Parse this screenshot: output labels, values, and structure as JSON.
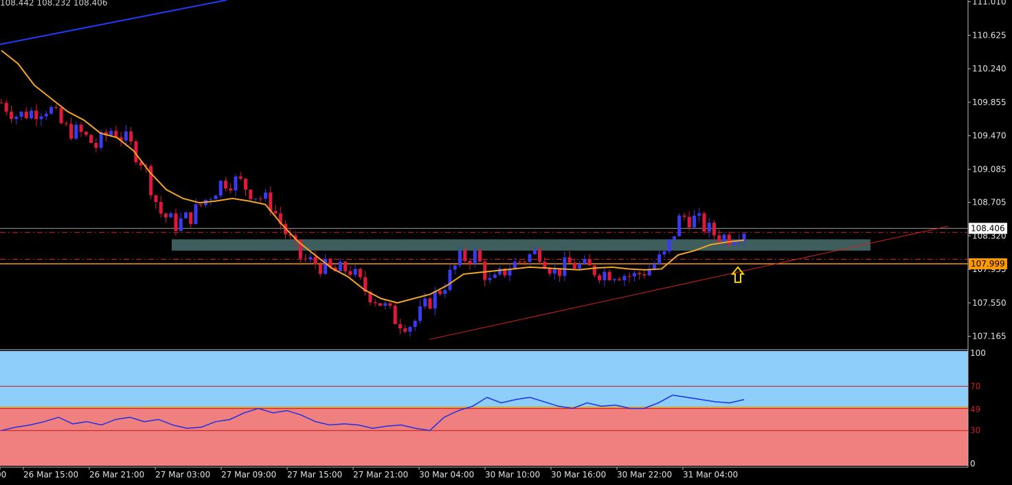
{
  "header": {
    "ohlc_text": "108.442 108.232 108.406"
  },
  "colors": {
    "background": "#000000",
    "bull_candle": "#3a3af0",
    "bear_candle": "#e0193a",
    "moving_average": "#f5a623",
    "blue_trendline": "#1f3cff",
    "red_trendline": "#d42020",
    "zone": "#3d5e5c",
    "price_tag_bg": "#ffffff",
    "level_line": "#ff9900",
    "rsi_upper_bg": "#8dcffa",
    "rsi_lower_bg": "#f08080",
    "rsi_line": "#1a2ee8",
    "axis_text": "#e0e0e0"
  },
  "price_axis": {
    "ticks": [
      "111.010",
      "110.625",
      "110.240",
      "109.855",
      "109.470",
      "109.085",
      "108.705",
      "108.320",
      "107.935",
      "107.550",
      "107.165"
    ],
    "current_price": "108.406",
    "level_price": "107.999"
  },
  "time_axis": {
    "labels": [
      "00",
      "26 Mar 15:00",
      "26 Mar 21:00",
      "27 Mar 03:00",
      "27 Mar 09:00",
      "27 Mar 15:00",
      "27 Mar 21:00",
      "30 Mar 04:00",
      "30 Mar 10:00",
      "30 Mar 16:00",
      "30 Mar 22:00",
      "31 Mar 04:00"
    ]
  },
  "rsi_axis": {
    "ticks": [
      "100",
      "70",
      "49",
      "30",
      "0"
    ],
    "levels": [
      70,
      50,
      30
    ]
  },
  "chart_data": [
    {
      "type": "candlestick",
      "title": "",
      "ylim": [
        107.02,
        111.03
      ],
      "x": [
        "00",
        "26 Mar 15:00",
        "26 Mar 21:00",
        "27 Mar 03:00",
        "27 Mar 09:00",
        "27 Mar 15:00",
        "27 Mar 21:00",
        "30 Mar 04:00",
        "30 Mar 10:00",
        "30 Mar 16:00",
        "30 Mar 22:00",
        "31 Mar 04:00"
      ],
      "close_path": [
        109.85,
        109.7,
        109.75,
        109.8,
        109.55,
        109.5,
        109.35,
        109.55,
        109.4,
        109.15,
        108.6,
        108.45,
        108.55,
        108.75,
        108.95,
        108.95,
        108.8,
        108.7,
        108.35,
        108.05,
        108.0,
        107.9,
        107.95,
        107.7,
        107.55,
        107.35,
        107.3,
        107.55,
        107.75,
        108.05,
        108.1,
        107.75,
        107.95,
        108.05,
        108.15,
        107.9,
        108.0,
        107.95,
        107.9,
        107.9,
        107.85,
        107.95,
        108.1,
        108.55,
        108.5,
        108.35,
        108.3,
        108.4
      ],
      "moving_average_path": [
        110.45,
        110.3,
        110.05,
        109.9,
        109.75,
        109.65,
        109.5,
        109.45,
        109.3,
        109.05,
        108.85,
        108.75,
        108.7,
        108.72,
        108.75,
        108.72,
        108.68,
        108.45,
        108.25,
        108.1,
        107.95,
        107.85,
        107.7,
        107.6,
        107.55,
        107.6,
        107.65,
        107.75,
        107.88,
        107.9,
        107.92,
        107.94,
        107.96,
        107.95,
        107.94,
        107.93,
        107.95,
        107.96,
        107.94,
        107.93,
        107.94,
        108.1,
        108.15,
        108.22,
        108.25,
        108.27
      ],
      "support_zone": [
        108.15,
        108.28
      ],
      "dashed_levels": [
        108.36,
        108.05
      ],
      "level_line": 107.999,
      "current_price": 108.406
    },
    {
      "type": "line",
      "title": "",
      "ylim": [
        0,
        100
      ],
      "series": [
        {
          "values": [
            30,
            33,
            35,
            38,
            42,
            36,
            38,
            35,
            40,
            42,
            38,
            40,
            35,
            32,
            33,
            38,
            40,
            46,
            50,
            46,
            48,
            44,
            38,
            35,
            36,
            35,
            32,
            34,
            35,
            32,
            30,
            42,
            48,
            52,
            60,
            55,
            58,
            60,
            56,
            52,
            50,
            55,
            52,
            53,
            50,
            50,
            55,
            62,
            60,
            58,
            56,
            55,
            58
          ]
        }
      ]
    }
  ]
}
